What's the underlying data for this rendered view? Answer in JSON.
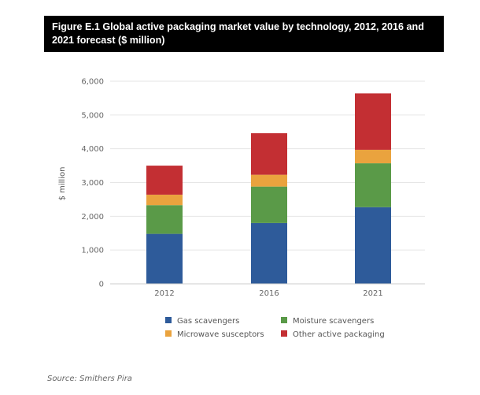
{
  "header": {
    "title": "Figure E.1 Global active packaging market value by technology, 2012, 2016 and 2021 forecast ($ million)"
  },
  "footer": {
    "source": "Source: Smithers Pira"
  },
  "chart_data": {
    "type": "bar",
    "stacked": true,
    "title": "Figure E.1 Global active packaging market value by technology, 2012, 2016 and 2021 forecast ($ million)",
    "categories": [
      "2012",
      "2016",
      "2021"
    ],
    "series": [
      {
        "name": "Gas scavengers",
        "color": "#2e5b9a",
        "values": [
          1480,
          1800,
          2270
        ]
      },
      {
        "name": "Moisture scavengers",
        "color": "#5a9a48",
        "values": [
          850,
          1080,
          1300
        ]
      },
      {
        "name": "Microwave susceptors",
        "color": "#eaa33e",
        "values": [
          310,
          350,
          400
        ]
      },
      {
        "name": "Other active packaging",
        "color": "#c32f33",
        "values": [
          860,
          1230,
          1670
        ]
      }
    ],
    "xlabel": "",
    "ylabel": "$ million",
    "ylim": [
      0,
      6000
    ],
    "yticks": [
      "0",
      "1,000",
      "2,000",
      "3,000",
      "4,000",
      "5,000",
      "6,000"
    ],
    "ytick_values": [
      0,
      1000,
      2000,
      3000,
      4000,
      5000,
      6000
    ],
    "grid": true,
    "legend_position": "bottom"
  }
}
